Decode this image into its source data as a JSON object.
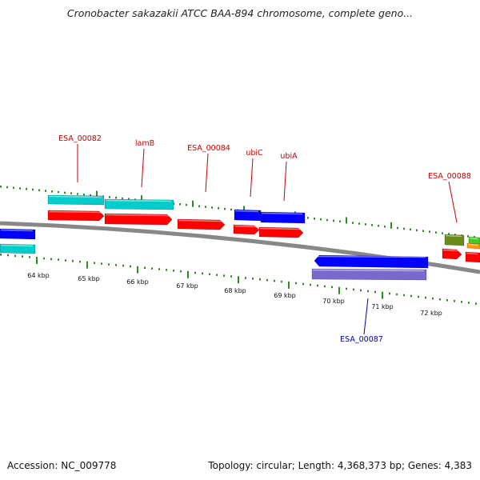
{
  "title": "Cronobacter sakazakii ATCC BAA-894 chromosome, complete geno...",
  "footer": {
    "accession": "Accession: NC_009778",
    "summary": "Topology: circular; Length: 4,368,373 bp; Genes: 4,383"
  },
  "colors": {
    "forward_gene": "#ff0000",
    "forward_cds": "#00cccc",
    "reverse_gene": "#0000ff",
    "reverse_cds": "#7b68cc",
    "backbone": "#888888",
    "gc_ticks": "#2e8b22",
    "label_forward": "#cc0000",
    "label_reverse": "#0000aa"
  },
  "ticks": [
    {
      "label": "64 kbp"
    },
    {
      "label": "65 kbp"
    },
    {
      "label": "66 kbp"
    },
    {
      "label": "67 kbp"
    },
    {
      "label": "68 kbp"
    },
    {
      "label": "69 kbp"
    },
    {
      "label": "70 kbp"
    },
    {
      "label": "71 kbp"
    },
    {
      "label": "72 kbp"
    }
  ],
  "gene_labels": [
    {
      "name": "ESA_00082",
      "strand": "forward"
    },
    {
      "name": "lamB",
      "strand": "forward"
    },
    {
      "name": "ESA_00084",
      "strand": "forward"
    },
    {
      "name": "ubiC",
      "strand": "forward"
    },
    {
      "name": "ubiA",
      "strand": "forward"
    },
    {
      "name": "ESA_00088",
      "strand": "forward"
    },
    {
      "name": "ESA_00087",
      "strand": "reverse"
    }
  ]
}
